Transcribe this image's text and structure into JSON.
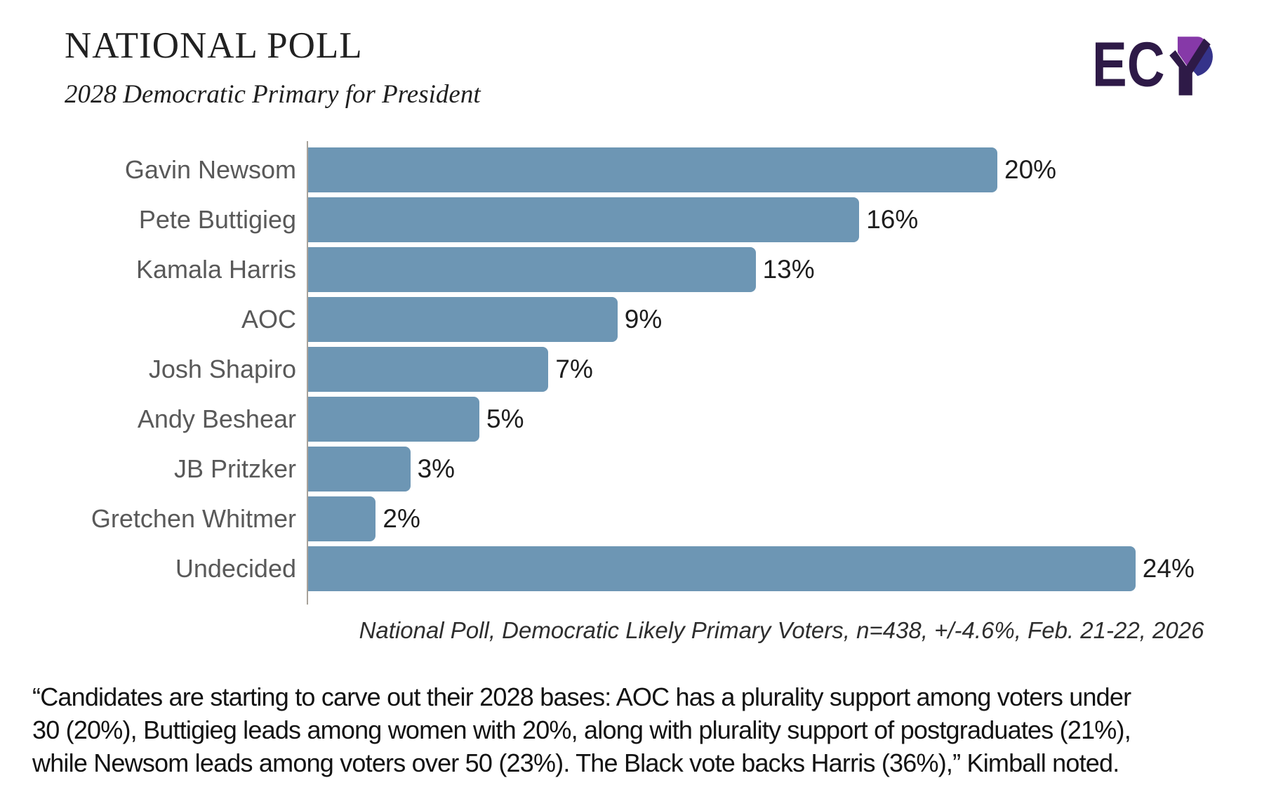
{
  "header": {
    "title": "NATIONAL POLL",
    "subtitle": "2028 Democratic Primary for President",
    "logo_text": "EC",
    "logo_name": "ECP"
  },
  "branding": {
    "logo_dark": "#2E1A47",
    "logo_purple": "#8639A8",
    "logo_blue": "#35338A",
    "bar_color": "#6D96B4",
    "category_label_color": "#595959",
    "axis_line_color": "#a8a29a"
  },
  "chart_data": {
    "type": "bar",
    "orientation": "horizontal",
    "title": "NATIONAL POLL",
    "subtitle": "2028 Democratic Primary for President",
    "categories": [
      "Gavin Newsom",
      "Pete Buttigieg",
      "Kamala Harris",
      "AOC",
      "Josh Shapiro",
      "Andy Beshear",
      "JB Pritzker",
      "Gretchen Whitmer",
      "Undecided"
    ],
    "values": [
      20,
      16,
      13,
      9,
      7,
      5,
      3,
      2,
      24
    ],
    "value_labels": [
      "20%",
      "16%",
      "13%",
      "9%",
      "7%",
      "5%",
      "3%",
      "2%",
      "24%"
    ],
    "unit": "percent",
    "xlim": [
      0,
      27.4
    ],
    "grid": false,
    "legend": false,
    "bar_color": "#6D96B4",
    "source_note": "National Poll, Democratic Likely Primary Voters, n=438, +/-4.6%, Feb. 21-22, 2026"
  },
  "footer": {
    "quote_lines": [
      "“Candidates are starting to carve out their 2028 bases: AOC has a plurality support among voters under",
      "30 (20%), Buttigieg leads among women with 20%, along with plurality support of postgraduates (21%),",
      "while Newsom leads among voters over 50 (23%). The Black vote backs Harris (36%),” Kimball noted."
    ]
  }
}
